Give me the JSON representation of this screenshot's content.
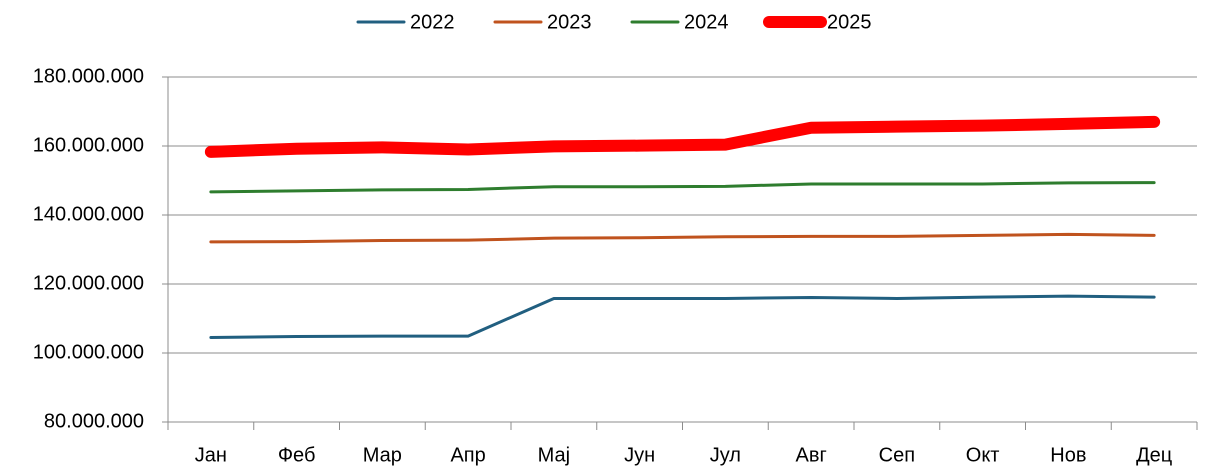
{
  "chart_data": {
    "type": "line",
    "categories": [
      "Јан",
      "Феб",
      "Мар",
      "Апр",
      "Мај",
      "Јун",
      "Јул",
      "Авг",
      "Сеп",
      "Окт",
      "Нов",
      "Дец"
    ],
    "series": [
      {
        "name": "2022",
        "color": "#215f80",
        "width": 3,
        "values": [
          104500000,
          104800000,
          104900000,
          104900000,
          115800000,
          115800000,
          115800000,
          116100000,
          115800000,
          116200000,
          116500000,
          116200000
        ]
      },
      {
        "name": "2023",
        "color": "#c0531e",
        "width": 3,
        "values": [
          132200000,
          132300000,
          132600000,
          132700000,
          133300000,
          133400000,
          133700000,
          133800000,
          133800000,
          134100000,
          134400000,
          134100000
        ]
      },
      {
        "name": "2024",
        "color": "#2e7d2e",
        "width": 3,
        "values": [
          146700000,
          147000000,
          147300000,
          147400000,
          148200000,
          148200000,
          148300000,
          149000000,
          149000000,
          149000000,
          149300000,
          149400000
        ]
      },
      {
        "name": "2025",
        "color": "#ff0000",
        "width": 12,
        "values": [
          158300000,
          159200000,
          159600000,
          159000000,
          159900000,
          160100000,
          160400000,
          165300000,
          165600000,
          165900000,
          166400000,
          167000000
        ]
      }
    ],
    "ylim": [
      80000000,
      180000000
    ],
    "yticks": [
      {
        "value": 80000000,
        "label": "80.000.000"
      },
      {
        "value": 100000000,
        "label": "100.000.000"
      },
      {
        "value": 120000000,
        "label": "120.000.000"
      },
      {
        "value": 140000000,
        "label": "140.000.000"
      },
      {
        "value": 160000000,
        "label": "160.000.000"
      },
      {
        "value": 180000000,
        "label": "180.000.000"
      }
    ],
    "grid": true,
    "legend": "top"
  }
}
